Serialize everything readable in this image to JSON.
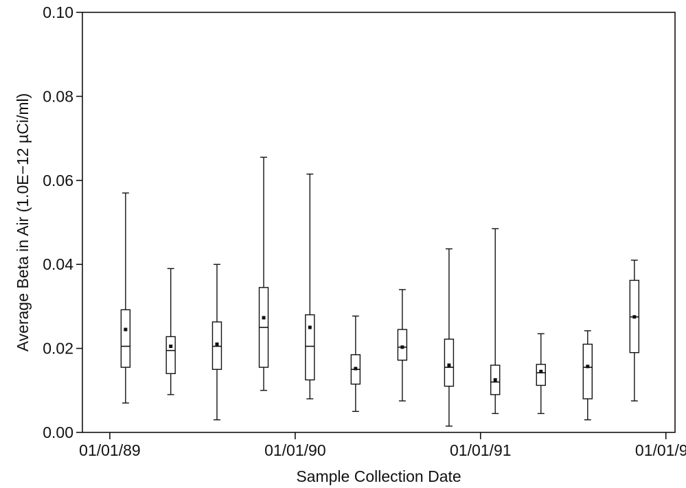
{
  "chart_data": {
    "type": "boxplot",
    "title": "",
    "xlabel": "Sample Collection Date",
    "ylabel": "Average Beta in Air (1.0E−12 µCi/ml)",
    "x_axis_type": "date",
    "xlim": [
      "1988-11-08",
      "1992-01-19"
    ],
    "ylim": [
      0,
      0.1
    ],
    "x_ticks": [
      {
        "date": "1989-01-01",
        "label": "01/01/89"
      },
      {
        "date": "1990-01-01",
        "label": "01/01/90"
      },
      {
        "date": "1991-01-01",
        "label": "01/01/91"
      },
      {
        "date": "1992-01-01",
        "label": "01/01/92"
      }
    ],
    "y_ticks": [
      {
        "value": 0,
        "label": "0.00"
      },
      {
        "value": 0.02,
        "label": "0.02"
      },
      {
        "value": 0.04,
        "label": "0.04"
      },
      {
        "value": 0.06,
        "label": "0.06"
      },
      {
        "value": 0.08,
        "label": "0.08"
      },
      {
        "value": 0.1,
        "label": "0.10"
      }
    ],
    "grid": false,
    "legend": "none",
    "boxes": [
      {
        "date": "1989-02-01",
        "min": 0.007,
        "q1": 0.0155,
        "median": 0.0205,
        "mean": 0.0245,
        "q3": 0.0292,
        "max": 0.057
      },
      {
        "date": "1989-05-01",
        "min": 0.009,
        "q1": 0.014,
        "median": 0.0195,
        "mean": 0.0205,
        "q3": 0.0228,
        "max": 0.039
      },
      {
        "date": "1989-07-31",
        "min": 0.003,
        "q1": 0.015,
        "median": 0.0205,
        "mean": 0.021,
        "q3": 0.0263,
        "max": 0.04
      },
      {
        "date": "1989-10-31",
        "min": 0.01,
        "q1": 0.0155,
        "median": 0.025,
        "mean": 0.0273,
        "q3": 0.0345,
        "max": 0.0655
      },
      {
        "date": "1990-01-30",
        "min": 0.008,
        "q1": 0.0125,
        "median": 0.0205,
        "mean": 0.025,
        "q3": 0.028,
        "max": 0.0615
      },
      {
        "date": "1990-04-30",
        "min": 0.005,
        "q1": 0.0115,
        "median": 0.015,
        "mean": 0.0152,
        "q3": 0.0185,
        "max": 0.0277
      },
      {
        "date": "1990-07-31",
        "min": 0.0075,
        "q1": 0.0172,
        "median": 0.0203,
        "mean": 0.0203,
        "q3": 0.0245,
        "max": 0.034
      },
      {
        "date": "1990-10-31",
        "min": 0.0015,
        "q1": 0.011,
        "median": 0.0155,
        "mean": 0.016,
        "q3": 0.0222,
        "max": 0.0437
      },
      {
        "date": "1991-01-30",
        "min": 0.0045,
        "q1": 0.009,
        "median": 0.012,
        "mean": 0.0125,
        "q3": 0.016,
        "max": 0.0485
      },
      {
        "date": "1991-04-30",
        "min": 0.0045,
        "q1": 0.0112,
        "median": 0.0142,
        "mean": 0.0145,
        "q3": 0.0162,
        "max": 0.0235
      },
      {
        "date": "1991-07-31",
        "min": 0.003,
        "q1": 0.008,
        "median": 0.0155,
        "mean": 0.0157,
        "q3": 0.021,
        "max": 0.0242
      },
      {
        "date": "1991-10-31",
        "min": 0.0075,
        "q1": 0.019,
        "median": 0.0275,
        "mean": 0.0275,
        "q3": 0.0362,
        "max": 0.041
      }
    ]
  }
}
